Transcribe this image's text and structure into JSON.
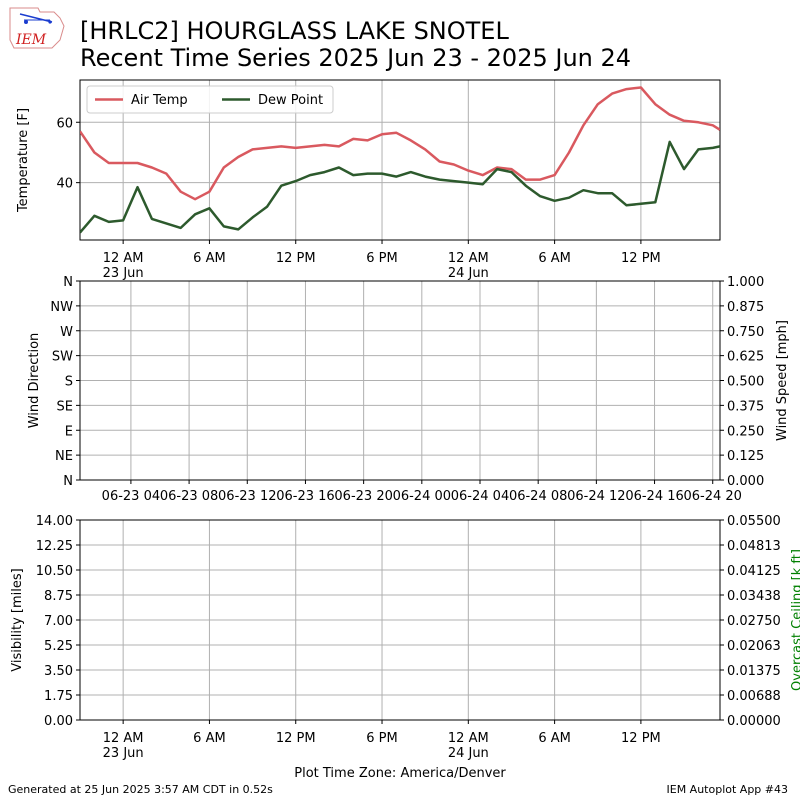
{
  "header": {
    "logo_text": "IEM",
    "title_line1": "[HRLC2] HOURGLASS LAKE SNOTEL",
    "title_line2": "Recent Time Series 2025 Jun 23 - 2025 Jun 24"
  },
  "footer": {
    "generated": "Generated at 25 Jun 2025 3:57 AM CDT in 0.52s",
    "app": "IEM Autoplot App #43",
    "timezone": "Plot Time Zone: America/Denver"
  },
  "colors": {
    "air_temp": "#d9595f",
    "dew_point": "#2d5a2d",
    "grid": "#b0b0b0",
    "ceiling_label": "#008000"
  },
  "chart_data": [
    {
      "type": "line",
      "ylabel": "Temperature [F]",
      "x_unit": "hours since 2025-06-22 21:00 America/Denver",
      "xlim": [
        0,
        44.5
      ],
      "ylim": [
        21,
        74
      ],
      "yticks": [
        40,
        60
      ],
      "grid": true,
      "legend_position": "upper-left",
      "xticks": [
        {
          "h": 3,
          "label": "12 AM",
          "sub": "23 Jun"
        },
        {
          "h": 9,
          "label": "6 AM",
          "sub": ""
        },
        {
          "h": 15,
          "label": "12 PM",
          "sub": ""
        },
        {
          "h": 21,
          "label": "6 PM",
          "sub": ""
        },
        {
          "h": 27,
          "label": "12 AM",
          "sub": "24 Jun"
        },
        {
          "h": 33,
          "label": "6 AM",
          "sub": ""
        },
        {
          "h": 39,
          "label": "12 PM",
          "sub": ""
        }
      ],
      "x": [
        0,
        1,
        2,
        3,
        4,
        5,
        6,
        7,
        8,
        9,
        10,
        11,
        12,
        13,
        14,
        15,
        16,
        17,
        18,
        19,
        20,
        21,
        22,
        23,
        24,
        25,
        26,
        27,
        28,
        29,
        30,
        31,
        32,
        33,
        34,
        35,
        36,
        37,
        38,
        39,
        40,
        41,
        42,
        43,
        44,
        44.5
      ],
      "series": [
        {
          "name": "Air Temp",
          "color_key": "air_temp",
          "values": [
            57,
            50,
            46.5,
            46.5,
            46.5,
            45,
            43,
            37,
            34.5,
            37,
            45,
            48.5,
            51,
            51.5,
            52,
            51.5,
            52,
            52.5,
            52,
            54.5,
            54,
            56,
            56.5,
            54,
            51,
            47,
            46,
            44,
            42.5,
            45,
            44.5,
            41,
            41,
            42.5,
            50,
            59,
            66,
            69.5,
            71,
            71.5,
            66,
            62.5,
            60.5,
            60,
            59,
            57.5
          ]
        },
        {
          "name": "Dew Point",
          "color_key": "dew_point",
          "values": [
            23.5,
            29,
            27,
            27.5,
            38.5,
            28,
            26.5,
            25,
            29.5,
            31.5,
            25.5,
            24.5,
            28.5,
            32,
            39,
            40.5,
            42.5,
            43.5,
            45,
            42.5,
            43,
            43,
            42,
            43.5,
            42,
            41,
            40.5,
            40,
            39.5,
            44.5,
            43.5,
            39,
            35.5,
            34,
            35,
            37.5,
            36.5,
            36.5,
            32.5,
            33,
            33.5,
            53.5,
            44.5,
            51,
            51.5,
            52
          ]
        }
      ]
    },
    {
      "type": "line",
      "ylabel": "Wind Direction",
      "ylabel_right": "Wind Speed [mph]",
      "ylim": [
        0,
        360
      ],
      "yticks": [
        "N",
        "NE",
        "E",
        "SE",
        "S",
        "SW",
        "W",
        "NW",
        "N"
      ],
      "ylim_right": [
        0,
        1
      ],
      "yticks_right": [
        "0.000",
        "0.125",
        "0.250",
        "0.375",
        "0.500",
        "0.625",
        "0.750",
        "0.875",
        "1.000"
      ],
      "grid": true,
      "xticks": [
        "06-23 04",
        "06-23 08",
        "06-23 12",
        "06-23 16",
        "06-23 20",
        "06-24 00",
        "06-24 04",
        "06-24 08",
        "06-24 12",
        "06-24 16",
        "06-24 20"
      ],
      "xtick_hours": [
        7,
        11,
        15,
        19,
        23,
        27,
        31,
        35,
        39,
        43,
        47
      ],
      "series": []
    },
    {
      "type": "line",
      "ylabel": "Visibility [miles]",
      "ylabel_right": "Overcast Ceiling [k ft]",
      "ylim": [
        0,
        14
      ],
      "yticks": [
        "0.00",
        "1.75",
        "3.50",
        "5.25",
        "7.00",
        "8.75",
        "10.50",
        "12.25",
        "14.00"
      ],
      "ylim_right": [
        0,
        0.055
      ],
      "yticks_right": [
        "0.00000",
        "0.00688",
        "0.01375",
        "0.02063",
        "0.02750",
        "0.03438",
        "0.04125",
        "0.04813",
        "0.05500"
      ],
      "grid": true,
      "xlabel": "Plot Time Zone: America/Denver",
      "xticks": [
        {
          "h": 3,
          "label": "12 AM",
          "sub": "23 Jun"
        },
        {
          "h": 9,
          "label": "6 AM",
          "sub": ""
        },
        {
          "h": 15,
          "label": "12 PM",
          "sub": ""
        },
        {
          "h": 21,
          "label": "6 PM",
          "sub": ""
        },
        {
          "h": 27,
          "label": "12 AM",
          "sub": "24 Jun"
        },
        {
          "h": 33,
          "label": "6 AM",
          "sub": ""
        },
        {
          "h": 39,
          "label": "12 PM",
          "sub": ""
        }
      ],
      "series": []
    }
  ]
}
